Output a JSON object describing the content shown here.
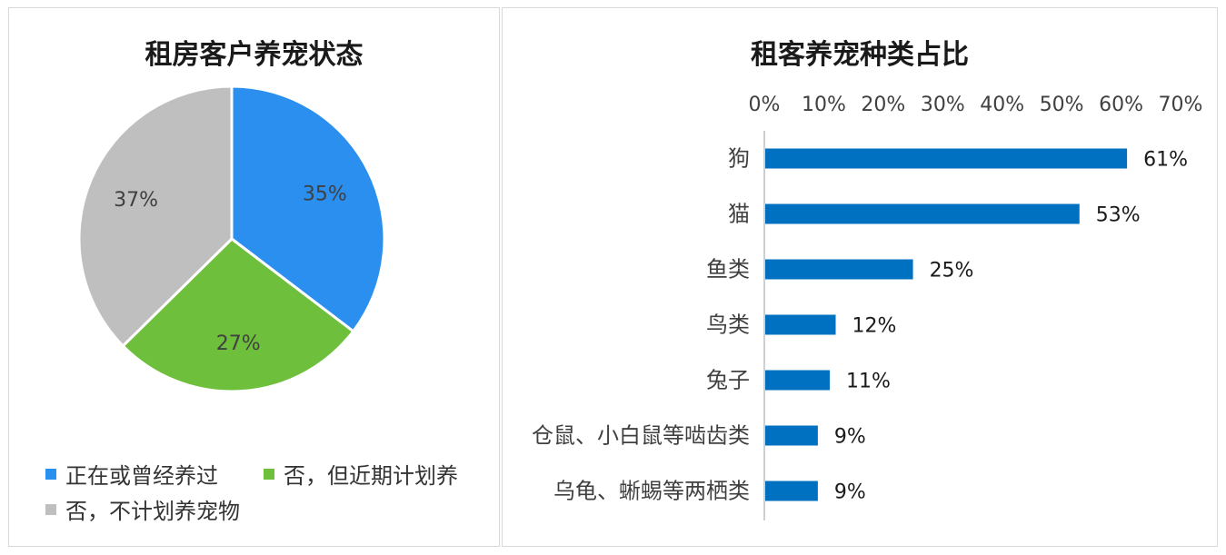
{
  "chart_data": [
    {
      "type": "pie",
      "title": "租房客户养宠状态",
      "slices": [
        {
          "label": "正在或曾经养过",
          "value": 35,
          "display": "35%",
          "color": "#2b8fef"
        },
        {
          "label": "否，但近期计划养",
          "value": 27,
          "display": "27%",
          "color": "#6ebf3b"
        },
        {
          "label": "否，不计划养宠物",
          "value": 37,
          "display": "37%",
          "color": "#bfbfbf"
        }
      ],
      "legend_position": "bottom"
    },
    {
      "type": "bar",
      "orientation": "horizontal",
      "title": "租客养宠种类占比",
      "categories": [
        "狗",
        "猫",
        "鱼类",
        "鸟类",
        "兔子",
        "仓鼠、小白鼠等啮齿类",
        "乌龟、蜥蜴等两栖类"
      ],
      "values": [
        61,
        53,
        25,
        12,
        11,
        9,
        9
      ],
      "data_labels": [
        "61%",
        "53%",
        "25%",
        "12%",
        "11%",
        "9%",
        "9%"
      ],
      "xlim": [
        0,
        70
      ],
      "xticks": [
        "0%",
        "10%",
        "20%",
        "30%",
        "40%",
        "50%",
        "60%",
        "70%"
      ],
      "axis_position": "top",
      "bar_color": "#0070c0",
      "grid": false
    }
  ]
}
